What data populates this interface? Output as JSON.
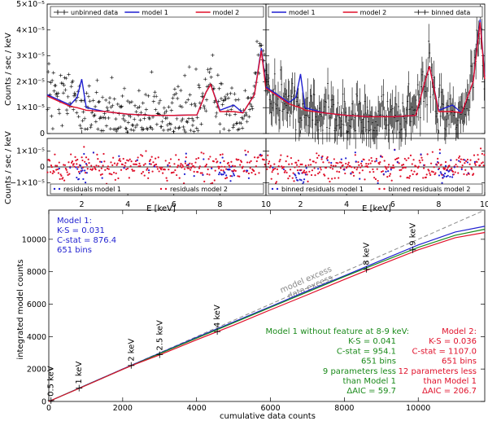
{
  "colors": {
    "model1": "#1f1fd0",
    "model2": "#e0102a",
    "model3": "#1a8a1a",
    "data": "#000000",
    "diag": "#8a8a8a"
  },
  "chart_data": [
    {
      "type": "scatter",
      "panel": "spectrum unbinned",
      "ylabel": "Counts / sec / keV",
      "ylim": [
        0,
        5e-05
      ],
      "y_ticks": [
        "0",
        "1×10⁻⁵",
        "2×10⁻⁵",
        "3×10⁻⁵",
        "4×10⁻⁵",
        "5×10⁻⁵"
      ],
      "legend": [
        "unbinned data",
        "model 1",
        "model 2"
      ],
      "x": [
        0.5,
        1.0,
        1.5,
        1.8,
        2.0,
        2.2,
        3.0,
        4.0,
        5.0,
        6.0,
        7.0,
        7.4,
        7.6,
        8.0,
        8.3,
        8.6,
        9.0,
        9.5,
        9.8,
        10.0
      ],
      "series": [
        {
          "name": "model 1",
          "values": [
            1.5e-05,
            1.3e-05,
            1.1e-05,
            1.4e-05,
            2.1e-05,
            1e-05,
            8.5e-06,
            7.5e-06,
            7e-06,
            7e-06,
            7.2e-06,
            1.6e-05,
            1.9e-05,
            9e-06,
            1e-05,
            1.1e-05,
            8e-06,
            1.5e-05,
            3.3e-05,
            1.8e-05
          ]
        },
        {
          "name": "model 2",
          "values": [
            1.45e-05,
            1.25e-05,
            1.05e-05,
            1e-05,
            9.5e-06,
            9e-06,
            8.5e-06,
            7.5e-06,
            7e-06,
            7e-06,
            7.2e-06,
            1.6e-05,
            1.9e-05,
            8.5e-06,
            8.5e-06,
            8.5e-06,
            8e-06,
            1.5e-05,
            3.2e-05,
            1.7e-05
          ]
        }
      ]
    },
    {
      "type": "scatter",
      "panel": "spectrum binned",
      "legend": [
        "model 1",
        "model 2",
        "binned data"
      ],
      "ylim": [
        0,
        5e-05
      ],
      "x": [
        0.5,
        1.0,
        1.5,
        1.8,
        2.0,
        2.2,
        3.0,
        4.0,
        5.0,
        6.0,
        7.0,
        7.4,
        7.6,
        8.0,
        8.3,
        8.6,
        9.0,
        9.5,
        9.8,
        10.0
      ],
      "series": [
        {
          "name": "model 1",
          "values": [
            1.8e-05,
            1.5e-05,
            1.2e-05,
            1.4e-05,
            2.3e-05,
            1e-05,
            8e-06,
            7e-06,
            6.5e-06,
            6.5e-06,
            7e-06,
            2e-05,
            2.6e-05,
            9e-06,
            1e-05,
            1.1e-05,
            8e-06,
            2e-05,
            4.4e-05,
            2.2e-05
          ]
        },
        {
          "name": "model 2",
          "values": [
            1.75e-05,
            1.45e-05,
            1.15e-05,
            1.05e-05,
            1e-05,
            9e-06,
            8e-06,
            7e-06,
            6.5e-06,
            6.5e-06,
            7e-06,
            2e-05,
            2.6e-05,
            8.5e-06,
            8.5e-06,
            8.5e-06,
            8e-06,
            2e-05,
            4.3e-05,
            2.1e-05
          ]
        }
      ]
    },
    {
      "type": "scatter",
      "panel": "residuals",
      "ylabel": "Counts / sec / keV",
      "xlabel": "E [keV]",
      "ylim": [
        -1.8e-05,
        1.8e-05
      ],
      "y_ticks": [
        "−1×10⁻⁵",
        "0",
        "1×10⁻⁵"
      ],
      "x_ticks": [
        "2",
        "4",
        "6",
        "8",
        "10"
      ],
      "legend_left": [
        "residuals model 1",
        "residuals model 2"
      ],
      "legend_right": [
        "binned residuals model 1",
        "binned residuals model 2"
      ]
    },
    {
      "type": "line",
      "panel": "cumulative",
      "xlabel": "cumulative data counts",
      "ylabel": "integrated model counts",
      "xlim": [
        0,
        11800
      ],
      "ylim": [
        0,
        11800
      ],
      "x_ticks": [
        "0",
        "2000",
        "4000",
        "6000",
        "8000",
        "10000"
      ],
      "y_ticks": [
        "0",
        "2000",
        "4000",
        "6000",
        "8000",
        "10000"
      ],
      "diagonal_labels": [
        "model excess",
        "data excess"
      ],
      "energy_markers": [
        {
          "label": "0.5 keV",
          "x": 60,
          "y": 55
        },
        {
          "label": "1 keV",
          "x": 820,
          "y": 820
        },
        {
          "label": "2 keV",
          "x": 2230,
          "y": 2220
        },
        {
          "label": "2.5 keV",
          "x": 3000,
          "y": 2880
        },
        {
          "label": "4 keV",
          "x": 4560,
          "y": 4310
        },
        {
          "label": "8 keV",
          "x": 8600,
          "y": 8150
        },
        {
          "label": "9 keV",
          "x": 9850,
          "y": 9350
        }
      ],
      "series": [
        {
          "name": "Model 1",
          "x": [
            0,
            1000,
            2000,
            3000,
            4000,
            5000,
            6000,
            7000,
            8000,
            9000,
            10000,
            11000,
            11800
          ],
          "values": [
            0,
            1000,
            2000,
            2980,
            3950,
            4900,
            5850,
            6820,
            7750,
            8700,
            9650,
            10450,
            10800
          ]
        },
        {
          "name": "Model 1 without feature at 8-9 keV",
          "x": [
            0,
            1000,
            2000,
            3000,
            4000,
            5000,
            6000,
            7000,
            8000,
            9000,
            10000,
            11000,
            11800
          ],
          "values": [
            0,
            990,
            1980,
            2950,
            3900,
            4850,
            5800,
            6750,
            7700,
            8600,
            9500,
            10250,
            10620
          ]
        },
        {
          "name": "Model 2",
          "x": [
            0,
            1000,
            2000,
            2250,
            3000,
            4000,
            5000,
            6000,
            7000,
            8000,
            9000,
            10000,
            11000,
            11800
          ],
          "values": [
            0,
            980,
            1980,
            2220,
            2870,
            3800,
            4700,
            5650,
            6580,
            7520,
            8450,
            9350,
            10100,
            10420
          ]
        }
      ],
      "annotations": {
        "model1": [
          "Model 1:",
          "K-S = 0.031",
          "C-stat = 876.4",
          "651 bins"
        ],
        "model3": [
          "Model 1 without feature at 8-9 keV:",
          "K-S = 0.041",
          "C-stat = 954.1",
          "651 bins",
          "9 parameters less",
          "than Model 1",
          "ΔAIC = 59.7"
        ],
        "model2": [
          "Model 2:",
          "K-S = 0.036",
          "C-stat = 1107.0",
          "651 bins",
          "12 parameters less",
          "than Model 1",
          "ΔAIC = 206.7"
        ]
      }
    }
  ]
}
